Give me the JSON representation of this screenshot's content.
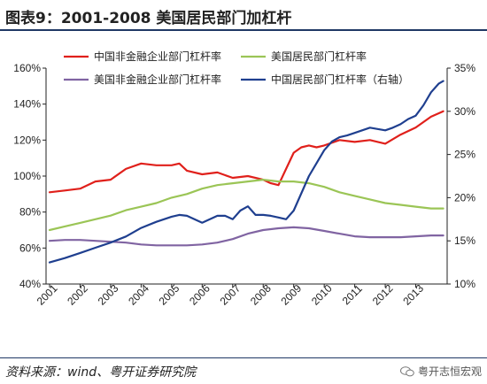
{
  "header": {
    "title": "图表9：2001-2008 美国居民部门加杠杆"
  },
  "footer": {
    "source": "资料来源：wind、粤开证券研究院",
    "watermark": "粤开志恒宏观"
  },
  "colors": {
    "cn_nonfin": "#e0201b",
    "us_household": "#9bc556",
    "us_nonfin": "#8064a2",
    "cn_household": "#1f3f8f",
    "axis": "#222222"
  },
  "chart_data": {
    "type": "line",
    "title": "",
    "xlabel": "",
    "ylabel": "",
    "left_ylim": [
      40,
      160
    ],
    "left_yticks": [
      "40%",
      "60%",
      "80%",
      "100%",
      "120%",
      "140%",
      "160%"
    ],
    "right_ylim": [
      10,
      35
    ],
    "right_yticks": [
      "10%",
      "15%",
      "20%",
      "25%",
      "30%",
      "35%"
    ],
    "xlim": [
      2001,
      2014
    ],
    "xticks": [
      "2001",
      "2002",
      "2003",
      "2004",
      "2005",
      "2006",
      "2007",
      "2008",
      "2009",
      "2010",
      "2011",
      "2012",
      "2013"
    ],
    "grid": false,
    "legend": "top",
    "series": [
      {
        "name": "中国非金融企业部门杠杆率",
        "axis": "left",
        "color": "#e0201b",
        "x": [
          2001.0,
          2001.5,
          2002.0,
          2002.5,
          2003.0,
          2003.5,
          2004.0,
          2004.5,
          2005.0,
          2005.25,
          2005.5,
          2006.0,
          2006.5,
          2007.0,
          2007.5,
          2008.0,
          2008.25,
          2008.5,
          2008.75,
          2009.0,
          2009.25,
          2009.5,
          2009.75,
          2010.0,
          2010.5,
          2011.0,
          2011.5,
          2012.0,
          2012.5,
          2013.0,
          2013.5,
          2013.9
        ],
        "y": [
          91,
          92,
          93,
          97,
          98,
          104,
          107,
          106,
          106,
          107,
          103,
          101,
          102,
          99,
          100,
          98,
          96,
          95,
          104,
          113,
          116,
          117,
          116,
          117,
          120,
          119,
          120,
          118,
          123,
          127,
          133,
          136
        ]
      },
      {
        "name": "美国居民部门杠杆率",
        "axis": "left",
        "color": "#9bc556",
        "x": [
          2001.0,
          2001.5,
          2002.0,
          2002.5,
          2003.0,
          2003.5,
          2004.0,
          2004.5,
          2005.0,
          2005.5,
          2006.0,
          2006.5,
          2007.0,
          2007.5,
          2008.0,
          2008.5,
          2009.0,
          2009.5,
          2010.0,
          2010.5,
          2011.0,
          2011.5,
          2012.0,
          2012.5,
          2013.0,
          2013.5,
          2013.9
        ],
        "y": [
          70,
          72,
          74,
          76,
          78,
          81,
          83,
          85,
          88,
          90,
          93,
          95,
          96,
          97,
          98,
          97,
          97,
          96,
          94,
          91,
          89,
          87,
          85,
          84,
          83,
          82,
          82
        ]
      },
      {
        "name": "美国非金融企业部门杠杆率",
        "axis": "left",
        "color": "#8064a2",
        "x": [
          2001.0,
          2001.5,
          2002.0,
          2002.5,
          2003.0,
          2003.5,
          2004.0,
          2004.5,
          2005.0,
          2005.5,
          2006.0,
          2006.5,
          2007.0,
          2007.5,
          2008.0,
          2008.5,
          2009.0,
          2009.5,
          2010.0,
          2010.5,
          2011.0,
          2011.5,
          2012.0,
          2012.5,
          2013.0,
          2013.5,
          2013.9
        ],
        "y": [
          64,
          64.5,
          64.5,
          64,
          63.5,
          63,
          62,
          61.5,
          61.5,
          61.5,
          62,
          63,
          65,
          68,
          70,
          71,
          71.5,
          71,
          69.5,
          68,
          66.5,
          66,
          66,
          66,
          66.5,
          67,
          67
        ]
      },
      {
        "name": "中国居民部门杠杆率（右轴）",
        "axis": "right",
        "color": "#1f3f8f",
        "x": [
          2001.0,
          2001.5,
          2002.0,
          2002.5,
          2003.0,
          2003.5,
          2004.0,
          2004.5,
          2005.0,
          2005.25,
          2005.5,
          2006.0,
          2006.5,
          2006.75,
          2007.0,
          2007.25,
          2007.5,
          2007.75,
          2008.0,
          2008.25,
          2008.5,
          2008.75,
          2009.0,
          2009.25,
          2009.5,
          2009.75,
          2010.0,
          2010.25,
          2010.5,
          2010.75,
          2011.0,
          2011.5,
          2012.0,
          2012.25,
          2012.5,
          2012.75,
          2013.0,
          2013.25,
          2013.5,
          2013.75,
          2013.9
        ],
        "y": [
          12.5,
          13.0,
          13.6,
          14.2,
          14.8,
          15.5,
          16.5,
          17.2,
          17.8,
          18.0,
          17.9,
          17.1,
          17.9,
          17.9,
          17.5,
          18.5,
          19.0,
          18.0,
          18.0,
          17.9,
          17.7,
          17.5,
          18.5,
          20.5,
          22.5,
          24.0,
          25.5,
          26.5,
          27.0,
          27.2,
          27.5,
          28.1,
          27.8,
          28.1,
          28.5,
          29.1,
          29.5,
          30.7,
          32.2,
          33.2,
          33.5
        ]
      }
    ]
  }
}
